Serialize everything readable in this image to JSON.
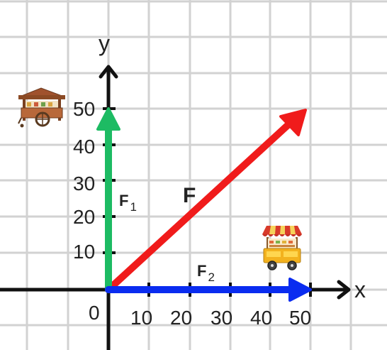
{
  "axes": {
    "x_name": "x",
    "y_name": "y",
    "origin_label": "0",
    "x_ticks": [
      "10",
      "20",
      "30",
      "40",
      "50"
    ],
    "y_ticks": [
      "10",
      "20",
      "30",
      "40",
      "50"
    ]
  },
  "vectors": {
    "f1": {
      "label": "F",
      "subscript": "1",
      "x": 0,
      "y": 50,
      "color": "#1dbb63"
    },
    "f2": {
      "label": "F",
      "subscript": "2",
      "x": 50,
      "y": 0,
      "color": "#0a2cf0"
    },
    "f": {
      "label": "F",
      "subscript": "",
      "x": 50,
      "y": 50,
      "color": "#f01b1b"
    }
  },
  "colors": {
    "grid": "#d2d2d2",
    "axis": "#111111"
  },
  "icons": [
    "food-cart-wooden-icon",
    "food-cart-striped-awning-icon"
  ]
}
